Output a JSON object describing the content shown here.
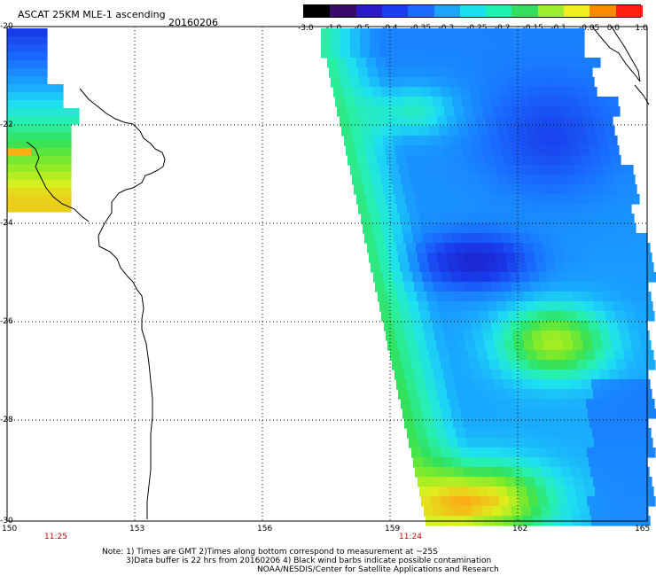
{
  "header": {
    "title": "ASCAT 25KM MLE-1 ascending",
    "date": "20160206"
  },
  "colorbar": {
    "labels": [
      "-3.0",
      "-1.0",
      "-0.5",
      "-0.4",
      "-0.35",
      "-0.3",
      "-0.25",
      "-0.2",
      "-0.15",
      "-0.1",
      "-0.05",
      "0.0",
      "1.0"
    ],
    "colors": [
      "#000000",
      "#3a0a6a",
      "#2a1ac8",
      "#1a3ef0",
      "#1a6cff",
      "#1aa6ff",
      "#1ae0f0",
      "#20f0b0",
      "#30e060",
      "#a0ee30",
      "#f0f020",
      "#ff8a00",
      "#ff2010"
    ]
  },
  "axes": {
    "lat_labels": [
      "-20",
      "-22",
      "-24",
      "-26",
      "-28",
      "-30"
    ],
    "lon_labels": [
      "150",
      "153",
      "156",
      "159",
      "162",
      "165"
    ],
    "time_labels": [
      "11:25",
      "11:24"
    ]
  },
  "footer": {
    "line1": "Note: 1) Times are GMT 2)Times along bottom correspond to measurement at ~25S",
    "line2": "3)Data buffer is 22 hrs from 20160206 4) Black wind barbs indicate possible contamination",
    "line3": "NOAA/NESDIS/Center for Satellite Applications and Research"
  }
}
